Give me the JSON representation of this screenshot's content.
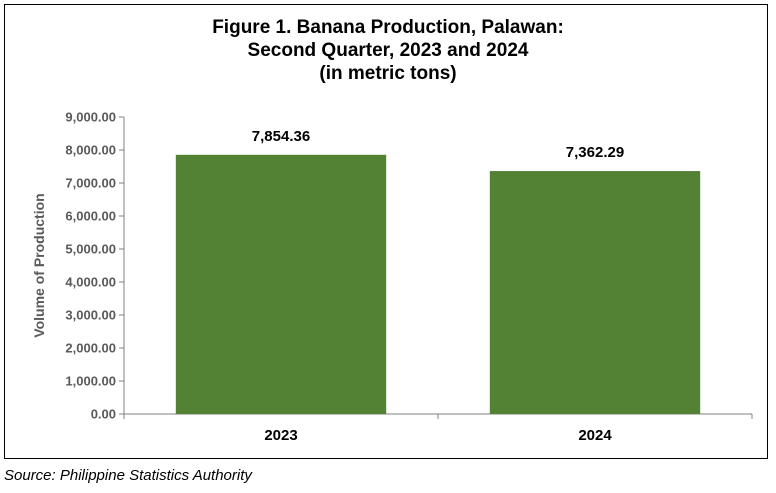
{
  "chart_data": {
    "type": "bar",
    "title_lines": [
      "Figure 1. Banana Production, Palawan:",
      "Second Quarter, 2023 and 2024",
      "(in metric tons)"
    ],
    "categories": [
      "2023",
      "2024"
    ],
    "values": [
      7854.36,
      7362.29
    ],
    "data_labels": [
      "7,854.36",
      "7,362.29"
    ],
    "ylabel": "Volume of Production",
    "xlabel": "",
    "ylim": [
      0,
      9000
    ],
    "yticks": [
      0,
      1000,
      2000,
      3000,
      4000,
      5000,
      6000,
      7000,
      8000,
      9000
    ],
    "ytick_labels": [
      "0.00",
      "1,000.00",
      "2,000.00",
      "3,000.00",
      "4,000.00",
      "5,000.00",
      "6,000.00",
      "7,000.00",
      "8,000.00",
      "9,000.00"
    ],
    "grid": false,
    "legend": "none",
    "bar_color": "#548235"
  },
  "source": "Source: Philippine Statistics Authority"
}
